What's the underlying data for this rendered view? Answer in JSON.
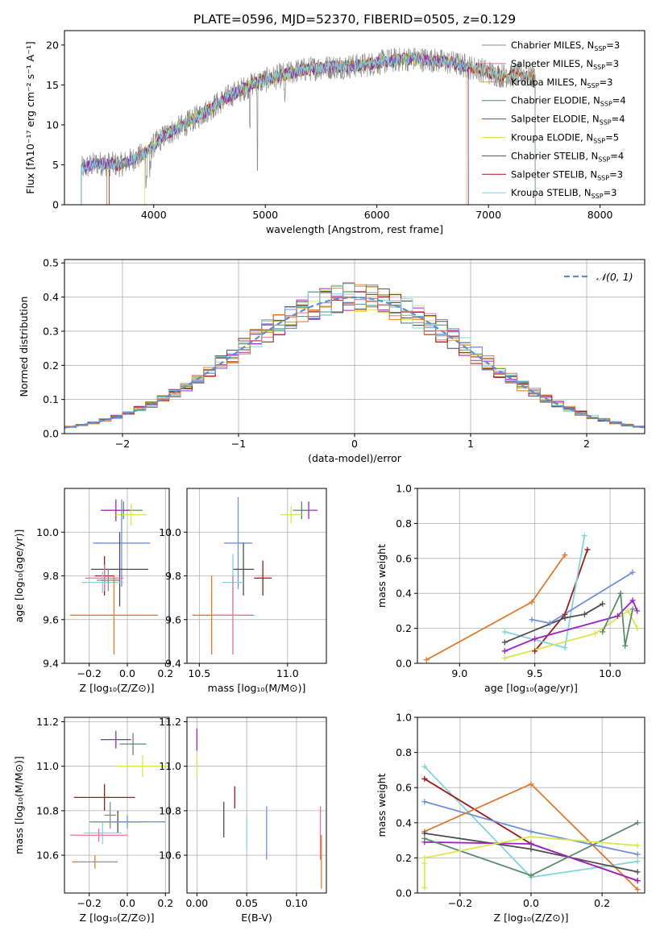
{
  "figure_title": "PLATE=0596, MJD=52370, FIBERID=0505, z=0.129",
  "colors": {
    "c0": "#8c8c8c",
    "c1": "#ef6f8f",
    "c2": "#d4a017",
    "c3": "#5b8c6a",
    "c4": "#a020c8",
    "c5": "#d7e84a",
    "c6": "#4d4d4d",
    "c7": "#a11a1a",
    "c8": "#7fd6dd",
    "normal": "#5a8fd6",
    "orange": "#e07b2d",
    "blue": "#6f8fe0"
  },
  "chart_data": [
    {
      "id": "spectrum",
      "type": "line",
      "xlabel": "wavelength [Angstrom, rest frame]",
      "ylabel": "Flux [fλ10⁻¹⁷ erg cm⁻² s⁻¹ A⁻¹]",
      "xlim": [
        3200,
        8400
      ],
      "ylim": [
        0,
        21.8
      ],
      "xticks": [
        4000,
        5000,
        6000,
        7000,
        8000
      ],
      "yticks": [
        0,
        5,
        10,
        15,
        20
      ],
      "grid": false,
      "legend": "upper-right",
      "legend_entries": [
        {
          "name": "Chabrier MILES, N",
          "sub": "SSP",
          "suffix": "=3",
          "color": "c0"
        },
        {
          "name": "Salpeter MILES, N",
          "sub": "SSP",
          "suffix": "=3",
          "color": "c1"
        },
        {
          "name": "Kroupa MILES, N",
          "sub": "SSP",
          "suffix": "=3",
          "color": "c2"
        },
        {
          "name": "Chabrier ELODIE, N",
          "sub": "SSP",
          "suffix": "=4",
          "color": "c3"
        },
        {
          "name": "Salpeter ELODIE, N",
          "sub": "SSP",
          "suffix": "=4",
          "color": "c4"
        },
        {
          "name": "Kroupa ELODIE, N",
          "sub": "SSP",
          "suffix": "=5",
          "color": "c5"
        },
        {
          "name": "Chabrier STELIB, N",
          "sub": "SSP",
          "suffix": "=4",
          "color": "c6"
        },
        {
          "name": "Salpeter STELIB, N",
          "sub": "SSP",
          "suffix": "=3",
          "color": "c7"
        },
        {
          "name": "Kroupa STELIB, N",
          "sub": "SSP",
          "suffix": "=3",
          "color": "c8"
        }
      ],
      "continuum": [
        [
          3350,
          4.5
        ],
        [
          3500,
          5.2
        ],
        [
          3700,
          5.0
        ],
        [
          3900,
          6.2
        ],
        [
          4100,
          8.7
        ],
        [
          4300,
          10.2
        ],
        [
          4500,
          12.0
        ],
        [
          4700,
          13.8
        ],
        [
          4900,
          15.2
        ],
        [
          5100,
          16.0
        ],
        [
          5300,
          16.8
        ],
        [
          5500,
          17.2
        ],
        [
          5700,
          17.3
        ],
        [
          5900,
          17.5
        ],
        [
          6100,
          18.0
        ],
        [
          6300,
          18.3
        ],
        [
          6500,
          18.1
        ],
        [
          6700,
          17.7
        ],
        [
          6900,
          17.0
        ],
        [
          7100,
          16.2
        ],
        [
          7300,
          16.2
        ],
        [
          7420,
          16.0
        ]
      ],
      "model_start": 3350,
      "data_end": 7420
    },
    {
      "id": "residual-hist",
      "type": "histogram",
      "xlabel": "(data-model)/error",
      "ylabel": "Normed distribution",
      "xlim": [
        -2.5,
        2.5
      ],
      "ylim": [
        0,
        0.51
      ],
      "xticks": [
        -2,
        -1,
        0,
        1,
        2
      ],
      "yticks": [
        0.0,
        0.1,
        0.2,
        0.3,
        0.4,
        0.5
      ],
      "grid": true,
      "legend": "upper-right",
      "legend_label": "𝒩(0, 1)",
      "bin_width": 0.1
    },
    {
      "id": "age-vs-Z",
      "type": "scatter",
      "xlabel": "Z [log₁₀(Z/Z⊙)]",
      "ylabel": "age  [log₁₀(age/yr)]",
      "xlim": [
        -0.33,
        0.22
      ],
      "ylim": [
        9.4,
        10.2
      ],
      "xticks": [
        -0.2,
        0.0,
        0.2
      ],
      "yticks": [
        9.4,
        9.6,
        9.8,
        10.0
      ],
      "grid": true,
      "points": [
        {
          "x": -0.02,
          "y": 10.1,
          "xerr": 0.1,
          "yerr": 0.04,
          "color": "c3"
        },
        {
          "x": -0.06,
          "y": 10.1,
          "xerr": 0.08,
          "yerr": 0.05,
          "color": "c4"
        },
        {
          "x": 0.02,
          "y": 10.08,
          "xerr": 0.08,
          "yerr": 0.05,
          "color": "c5"
        },
        {
          "x": -0.03,
          "y": 9.95,
          "xerr": 0.15,
          "yerr": 0.2,
          "color": "blue"
        },
        {
          "x": -0.04,
          "y": 9.83,
          "xerr": 0.15,
          "yerr": 0.17,
          "color": "c6"
        },
        {
          "x": -0.12,
          "y": 9.8,
          "xerr": 0.05,
          "yerr": 0.09,
          "color": "c7"
        },
        {
          "x": -0.12,
          "y": 9.79,
          "xerr": 0.1,
          "yerr": 0.06,
          "color": "c1"
        },
        {
          "x": -0.13,
          "y": 9.77,
          "xerr": 0.11,
          "yerr": 0.05,
          "color": "c8"
        },
        {
          "x": -0.1,
          "y": 9.78,
          "xerr": 0.06,
          "yerr": 0.05,
          "color": "c0"
        },
        {
          "x": -0.07,
          "y": 9.62,
          "xerr": 0.23,
          "yerr": 0.18,
          "color": "orange"
        }
      ]
    },
    {
      "id": "age-vs-mass",
      "type": "scatter",
      "xlabel": "mass [log₁₀(M/M⊙)]",
      "ylabel": "",
      "xlim": [
        10.43,
        11.22
      ],
      "ylim": [
        9.4,
        10.2
      ],
      "xticks": [
        10.5,
        11.0
      ],
      "yticks": [
        9.4,
        9.6,
        9.8,
        10.0
      ],
      "grid": true,
      "points": [
        {
          "x": 11.12,
          "y": 10.1,
          "xerr": 0.05,
          "yerr": 0.04,
          "color": "c4"
        },
        {
          "x": 11.08,
          "y": 10.1,
          "xerr": 0.05,
          "yerr": 0.04,
          "color": "c3"
        },
        {
          "x": 11.02,
          "y": 10.08,
          "xerr": 0.06,
          "yerr": 0.04,
          "color": "c5"
        },
        {
          "x": 10.72,
          "y": 9.95,
          "xerr": 0.08,
          "yerr": 0.21,
          "color": "blue"
        },
        {
          "x": 10.75,
          "y": 9.83,
          "xerr": 0.06,
          "yerr": 0.12,
          "color": "c6"
        },
        {
          "x": 10.86,
          "y": 9.79,
          "xerr": 0.05,
          "yerr": 0.08,
          "color": "c7"
        },
        {
          "x": 10.69,
          "y": 9.77,
          "xerr": 0.06,
          "yerr": 0.13,
          "color": "c8"
        },
        {
          "x": 10.57,
          "y": 9.62,
          "xerr": 0.11,
          "yerr": 0.18,
          "color": "orange"
        },
        {
          "x": 10.69,
          "y": 9.62,
          "xerr": 0.12,
          "yerr": 0.18,
          "color": "c1"
        }
      ]
    },
    {
      "id": "massweight-vs-age",
      "type": "line",
      "xlabel": "age  [log₁₀(age/yr)]",
      "ylabel": "mass weight",
      "xlim": [
        8.72,
        10.23
      ],
      "ylim": [
        0,
        1.0
      ],
      "xticks": [
        9.0,
        9.5,
        10.0
      ],
      "yticks": [
        0.0,
        0.2,
        0.4,
        0.6,
        0.8,
        1.0
      ],
      "grid": true,
      "series": [
        {
          "color": "orange",
          "points": [
            [
              8.78,
              0.02
            ],
            [
              9.48,
              0.35
            ],
            [
              9.7,
              0.62
            ]
          ]
        },
        {
          "color": "c7",
          "points": [
            [
              9.5,
              0.07
            ],
            [
              9.7,
              0.28
            ],
            [
              9.85,
              0.65
            ]
          ]
        },
        {
          "color": "c8",
          "points": [
            [
              9.3,
              0.18
            ],
            [
              9.7,
              0.09
            ],
            [
              9.83,
              0.73
            ]
          ]
        },
        {
          "color": "blue",
          "points": [
            [
              9.48,
              0.25
            ],
            [
              9.6,
              0.23
            ],
            [
              10.15,
              0.52
            ]
          ]
        },
        {
          "color": "c6",
          "points": [
            [
              9.3,
              0.12
            ],
            [
              9.7,
              0.26
            ],
            [
              9.83,
              0.28
            ],
            [
              9.95,
              0.34
            ]
          ]
        },
        {
          "color": "c4",
          "points": [
            [
              9.3,
              0.07
            ],
            [
              9.5,
              0.14
            ],
            [
              10.05,
              0.27
            ],
            [
              10.15,
              0.36
            ],
            [
              10.18,
              0.3
            ]
          ]
        },
        {
          "color": "c5",
          "points": [
            [
              9.3,
              0.03
            ],
            [
              9.9,
              0.17
            ],
            [
              10.12,
              0.3
            ],
            [
              10.18,
              0.2
            ]
          ]
        },
        {
          "color": "c3",
          "points": [
            [
              9.95,
              0.18
            ],
            [
              10.07,
              0.4
            ],
            [
              10.1,
              0.1
            ],
            [
              10.15,
              0.31
            ]
          ]
        }
      ]
    },
    {
      "id": "mass-vs-Z",
      "type": "scatter",
      "xlabel": "Z [log₁₀(Z/Z⊙)]",
      "ylabel": "mass [log₁₀(M/M⊙)]",
      "xlim": [
        -0.33,
        0.22
      ],
      "ylim": [
        10.43,
        11.22
      ],
      "xticks": [
        -0.2,
        0.0,
        0.2
      ],
      "yticks": [
        10.6,
        10.8,
        11.0,
        11.2
      ],
      "grid": true,
      "points": [
        {
          "x": -0.06,
          "y": 11.12,
          "xerr": 0.08,
          "yerr": 0.04,
          "color": "c4"
        },
        {
          "x": 0.03,
          "y": 11.1,
          "xerr": 0.07,
          "yerr": 0.05,
          "color": "c3"
        },
        {
          "x": 0.08,
          "y": 11.0,
          "xerr": 0.13,
          "yerr": 0.05,
          "color": "c5"
        },
        {
          "x": -0.12,
          "y": 10.86,
          "xerr": 0.16,
          "yerr": 0.06,
          "color": "c7"
        },
        {
          "x": -0.09,
          "y": 10.78,
          "xerr": 0.03,
          "yerr": 0.06,
          "color": "c0"
        },
        {
          "x": -0.05,
          "y": 10.75,
          "xerr": 0.13,
          "yerr": 0.05,
          "color": "c6"
        },
        {
          "x": 0.0,
          "y": 10.75,
          "xerr": 0.2,
          "yerr": 0.03,
          "color": "blue"
        },
        {
          "x": -0.13,
          "y": 10.7,
          "xerr": 0.1,
          "yerr": 0.05,
          "color": "c8"
        },
        {
          "x": -0.15,
          "y": 10.69,
          "xerr": 0.15,
          "yerr": 0.03,
          "color": "c1"
        },
        {
          "x": -0.17,
          "y": 10.57,
          "xerr": 0.12,
          "yerr": 0.03,
          "color": "orange"
        }
      ]
    },
    {
      "id": "mass-vs-EBV",
      "type": "scatter",
      "xlabel": "E(B-V)",
      "ylabel": "",
      "xlim": [
        -0.01,
        0.13
      ],
      "ylim": [
        10.43,
        11.22
      ],
      "xticks": [
        0.0,
        0.05,
        0.1
      ],
      "yticks": [
        10.6,
        10.8,
        11.0,
        11.2
      ],
      "grid": true,
      "points": [
        {
          "x": 0.0,
          "y": 11.12,
          "yerr": 0.05,
          "color": "c4"
        },
        {
          "x": 0.0,
          "y": 11.0,
          "yerr": 0.05,
          "color": "c5"
        },
        {
          "x": 0.038,
          "y": 10.86,
          "yerr": 0.05,
          "color": "c7"
        },
        {
          "x": 0.027,
          "y": 10.76,
          "yerr": 0.08,
          "color": "c6"
        },
        {
          "x": 0.05,
          "y": 10.7,
          "yerr": 0.07,
          "color": "c8"
        },
        {
          "x": 0.07,
          "y": 10.7,
          "yerr": 0.12,
          "color": "blue"
        },
        {
          "x": 0.124,
          "y": 10.7,
          "yerr": 0.12,
          "color": "c1"
        },
        {
          "x": 0.125,
          "y": 10.57,
          "yerr": 0.12,
          "color": "orange"
        }
      ]
    },
    {
      "id": "massweight-vs-Z",
      "type": "line",
      "xlabel": "Z [log₁₀(Z/Z⊙)]",
      "ylabel": "mass weight",
      "xlim": [
        -0.32,
        0.32
      ],
      "ylim": [
        0,
        1.0
      ],
      "xticks": [
        -0.2,
        0.0,
        0.2
      ],
      "yticks": [
        0.0,
        0.2,
        0.4,
        0.6,
        0.8,
        1.0
      ],
      "grid": true,
      "series": [
        {
          "color": "c8",
          "points": [
            [
              -0.3,
              0.72
            ],
            [
              0.0,
              0.09
            ],
            [
              0.3,
              0.18
            ]
          ]
        },
        {
          "color": "c7",
          "points": [
            [
              -0.3,
              0.65
            ],
            [
              0.0,
              0.28
            ],
            [
              0.3,
              0.07
            ]
          ]
        },
        {
          "color": "blue",
          "points": [
            [
              -0.3,
              0.52
            ],
            [
              0.0,
              0.35
            ],
            [
              0.3,
              0.22
            ]
          ]
        },
        {
          "color": "orange",
          "points": [
            [
              -0.3,
              0.35
            ],
            [
              0.0,
              0.62
            ],
            [
              0.3,
              0.02
            ]
          ]
        },
        {
          "color": "c6",
          "points": [
            [
              -0.3,
              0.34
            ],
            [
              0.0,
              0.25
            ],
            [
              0.3,
              0.12
            ]
          ]
        },
        {
          "color": "c4",
          "points": [
            [
              -0.3,
              0.29
            ],
            [
              0.0,
              0.28
            ],
            [
              0.3,
              0.07
            ]
          ]
        },
        {
          "color": "c3",
          "points": [
            [
              -0.3,
              0.31
            ],
            [
              0.0,
              0.1
            ],
            [
              0.3,
              0.4
            ]
          ]
        },
        {
          "color": "c5",
          "points": [
            [
              -0.3,
              0.2
            ],
            [
              0.0,
              0.32
            ],
            [
              0.3,
              0.27
            ]
          ]
        },
        {
          "color": "c5",
          "points": [
            [
              -0.3,
              0.03
            ],
            [
              -0.3,
              0.17
            ]
          ]
        }
      ]
    }
  ]
}
